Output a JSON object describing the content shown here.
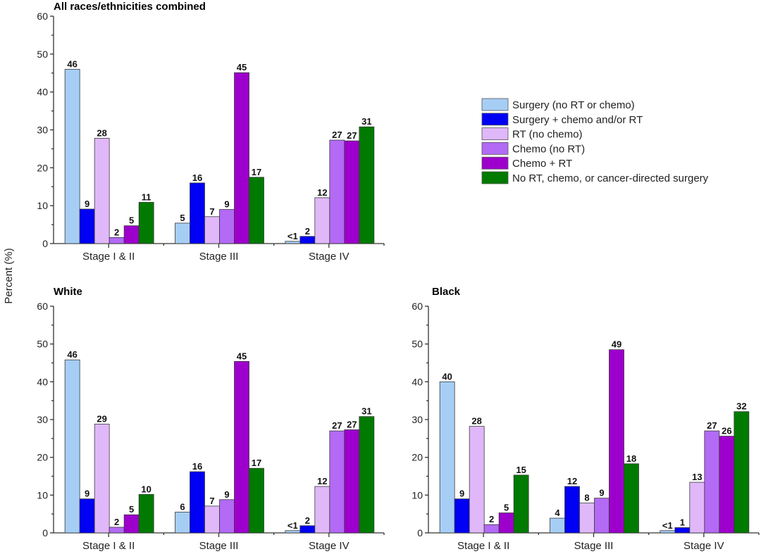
{
  "chart_data": {
    "type": "bar",
    "ylabel": "Percent (%)",
    "ylim": [
      0,
      60
    ],
    "yticks": [
      0,
      10,
      20,
      30,
      40,
      50,
      60
    ],
    "categories": [
      "Stage I & II",
      "Stage III",
      "Stage IV"
    ],
    "legend": {
      "placement": "right of top panel",
      "entries": [
        {
          "name": "Surgery (no RT or chemo)",
          "color": "#A6CEF5"
        },
        {
          "name": "Surgery + chemo and/or RT",
          "color": "#0000F5"
        },
        {
          "name": "RT (no chemo)",
          "color": "#E0B8FA"
        },
        {
          "name": "Chemo (no RT)",
          "color": "#B36AF5"
        },
        {
          "name": "Chemo + RT",
          "color": "#9D00CC"
        },
        {
          "name": "No RT, chemo, or cancer-directed surgery",
          "color": "#007A00"
        }
      ]
    },
    "panels": [
      {
        "title": "All races/ethnicities combined",
        "series": [
          {
            "name": "Surgery (no RT or chemo)",
            "values": [
              46,
              5.4,
              0.6
            ],
            "labels": [
              "46",
              "5",
              "<1"
            ]
          },
          {
            "name": "Surgery + chemo and/or RT",
            "values": [
              9.1,
              16,
              1.9
            ],
            "labels": [
              "9",
              "16",
              "2"
            ]
          },
          {
            "name": "RT (no chemo)",
            "values": [
              27.8,
              7.1,
              12.1
            ],
            "labels": [
              "28",
              "7",
              "12"
            ]
          },
          {
            "name": "Chemo (no RT)",
            "values": [
              1.6,
              9,
              27.3
            ],
            "labels": [
              "2",
              "9",
              "27"
            ]
          },
          {
            "name": "Chemo + RT",
            "values": [
              4.7,
              45.1,
              27.1
            ],
            "labels": [
              "5",
              "45",
              "27"
            ]
          },
          {
            "name": "No RT, chemo, or cancer-directed surgery",
            "values": [
              10.9,
              17.5,
              30.8
            ],
            "labels": [
              "11",
              "17",
              "31"
            ]
          }
        ]
      },
      {
        "title": "White",
        "series": [
          {
            "name": "Surgery (no RT or chemo)",
            "values": [
              45.8,
              5.5,
              0.6
            ],
            "labels": [
              "46",
              "6",
              "<1"
            ]
          },
          {
            "name": "Surgery + chemo and/or RT",
            "values": [
              9,
              16.2,
              1.9
            ],
            "labels": [
              "9",
              "16",
              "2"
            ]
          },
          {
            "name": "RT (no chemo)",
            "values": [
              28.8,
              7.1,
              12.3
            ],
            "labels": [
              "29",
              "7",
              "12"
            ]
          },
          {
            "name": "Chemo (no RT)",
            "values": [
              1.5,
              8.8,
              27
            ],
            "labels": [
              "2",
              "9",
              "27"
            ]
          },
          {
            "name": "Chemo + RT",
            "values": [
              4.8,
              45.4,
              27.3
            ],
            "labels": [
              "5",
              "45",
              "27"
            ]
          },
          {
            "name": "No RT, chemo, or cancer-directed surgery",
            "values": [
              10.2,
              17.1,
              30.8
            ],
            "labels": [
              "10",
              "17",
              "31"
            ]
          }
        ]
      },
      {
        "title": "Black",
        "series": [
          {
            "name": "Surgery (no RT or chemo)",
            "values": [
              40,
              3.9,
              0.6
            ],
            "labels": [
              "40",
              "4",
              "<1"
            ]
          },
          {
            "name": "Surgery + chemo and/or RT",
            "values": [
              9,
              12.3,
              1.4
            ],
            "labels": [
              "9",
              "12",
              "1"
            ]
          },
          {
            "name": "RT (no chemo)",
            "values": [
              28.2,
              7.9,
              13.4
            ],
            "labels": [
              "28",
              "8",
              "13"
            ]
          },
          {
            "name": "Chemo (no RT)",
            "values": [
              2.2,
              9.2,
              27
            ],
            "labels": [
              "2",
              "9",
              "27"
            ]
          },
          {
            "name": "Chemo + RT",
            "values": [
              5.3,
              48.5,
              25.6
            ],
            "labels": [
              "5",
              "49",
              "26"
            ]
          },
          {
            "name": "No RT, chemo, or cancer-directed surgery",
            "values": [
              15.3,
              18.3,
              32.1
            ],
            "labels": [
              "15",
              "18",
              "32"
            ]
          }
        ]
      }
    ]
  }
}
